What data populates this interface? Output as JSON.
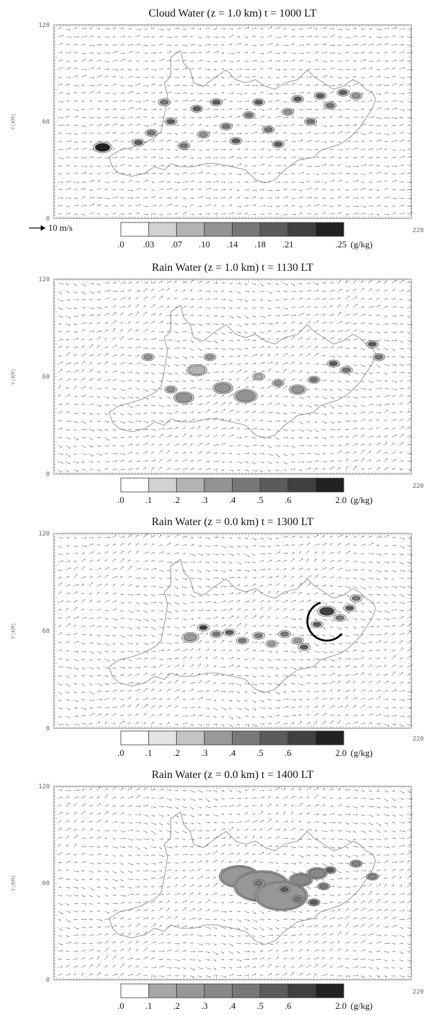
{
  "chart_data": [
    {
      "type": "heatmap",
      "title": "Cloud Water (z = 1.0 km)  t = 1000 LT",
      "ylabel": "Y(KM)",
      "x_max_label": "220",
      "yticks": [
        "0",
        "60",
        "120"
      ],
      "xlim": [
        0,
        220
      ],
      "ylim": [
        0,
        120
      ],
      "vector_reference": "10 m/s",
      "colorbar": {
        "labels": [
          ".0",
          ".03",
          ".07",
          ".10",
          ".14",
          ".18",
          ".21",
          ".25"
        ],
        "unit": "(g/kg)",
        "colors": [
          "#ffffff",
          "#d2d2d2",
          "#b3b3b3",
          "#949494",
          "#777777",
          "#5b5b5b",
          "#404040",
          "#222222"
        ]
      },
      "cells": [
        {
          "x": 30,
          "y": 44,
          "level": 7,
          "w": 9
        },
        {
          "x": 52,
          "y": 47,
          "level": 5
        },
        {
          "x": 60,
          "y": 53,
          "level": 4
        },
        {
          "x": 68,
          "y": 72,
          "level": 4
        },
        {
          "x": 72,
          "y": 60,
          "level": 5
        },
        {
          "x": 80,
          "y": 45,
          "level": 4
        },
        {
          "x": 88,
          "y": 68,
          "level": 5
        },
        {
          "x": 92,
          "y": 52,
          "level": 3
        },
        {
          "x": 100,
          "y": 72,
          "level": 5
        },
        {
          "x": 106,
          "y": 57,
          "level": 4
        },
        {
          "x": 112,
          "y": 48,
          "level": 5
        },
        {
          "x": 120,
          "y": 64,
          "level": 4
        },
        {
          "x": 126,
          "y": 72,
          "level": 5
        },
        {
          "x": 132,
          "y": 55,
          "level": 4
        },
        {
          "x": 138,
          "y": 46,
          "level": 5
        },
        {
          "x": 144,
          "y": 66,
          "level": 3
        },
        {
          "x": 150,
          "y": 74,
          "level": 5
        },
        {
          "x": 158,
          "y": 60,
          "level": 4
        },
        {
          "x": 164,
          "y": 76,
          "level": 5
        },
        {
          "x": 170,
          "y": 70,
          "level": 4
        },
        {
          "x": 178,
          "y": 78,
          "level": 5
        },
        {
          "x": 186,
          "y": 76,
          "level": 3
        }
      ]
    },
    {
      "type": "heatmap",
      "title": "Rain Water (z = 1.0 km)  t = 1130 LT",
      "ylabel": "Y(KM)",
      "x_max_label": "220",
      "yticks": [
        "0",
        "60",
        "120"
      ],
      "xlim": [
        0,
        220
      ],
      "ylim": [
        0,
        120
      ],
      "colorbar": {
        "labels": [
          ".0",
          ".1",
          ".2",
          ".3",
          ".4",
          ".5",
          ".6",
          "2.0"
        ],
        "unit": "(g/kg)",
        "colors": [
          "#ffffff",
          "#d2d2d2",
          "#b3b3b3",
          "#949494",
          "#777777",
          "#5b5b5b",
          "#404040",
          "#222222"
        ]
      },
      "cells": [
        {
          "x": 58,
          "y": 72,
          "level": 3
        },
        {
          "x": 72,
          "y": 52,
          "level": 3
        },
        {
          "x": 80,
          "y": 47,
          "level": 3,
          "w": 10
        },
        {
          "x": 88,
          "y": 64,
          "level": 2,
          "w": 10
        },
        {
          "x": 96,
          "y": 72,
          "level": 3
        },
        {
          "x": 104,
          "y": 53,
          "level": 3,
          "w": 10
        },
        {
          "x": 118,
          "y": 48,
          "level": 3,
          "w": 12
        },
        {
          "x": 126,
          "y": 60,
          "level": 2
        },
        {
          "x": 138,
          "y": 56,
          "level": 3
        },
        {
          "x": 150,
          "y": 52,
          "level": 3,
          "w": 8
        },
        {
          "x": 160,
          "y": 58,
          "level": 4
        },
        {
          "x": 172,
          "y": 68,
          "level": 5
        },
        {
          "x": 180,
          "y": 64,
          "level": 4
        },
        {
          "x": 196,
          "y": 80,
          "level": 5
        },
        {
          "x": 200,
          "y": 72,
          "level": 4
        }
      ]
    },
    {
      "type": "heatmap",
      "title": "Rain Water (z = 0.0 km)  t = 1300 LT",
      "ylabel": "Y(KM)",
      "x_max_label": "220",
      "yticks": [
        "0",
        "60",
        "120"
      ],
      "xlim": [
        0,
        220
      ],
      "ylim": [
        0,
        120
      ],
      "colorbar": {
        "labels": [
          ".0",
          ".1",
          ".2",
          ".3",
          ".4",
          ".5",
          ".6",
          "2.0"
        ],
        "unit": "(g/kg)",
        "colors": [
          "#ffffff",
          "#e4e4e4",
          "#c4c4c4",
          "#9a9a9a",
          "#7a7a7a",
          "#5b5b5b",
          "#404040",
          "#222222"
        ]
      },
      "cells": [
        {
          "x": 84,
          "y": 56,
          "level": 3,
          "w": 8
        },
        {
          "x": 92,
          "y": 62,
          "level": 6
        },
        {
          "x": 100,
          "y": 58,
          "level": 4
        },
        {
          "x": 108,
          "y": 59,
          "level": 5
        },
        {
          "x": 116,
          "y": 54,
          "level": 4
        },
        {
          "x": 126,
          "y": 57,
          "level": 4
        },
        {
          "x": 134,
          "y": 52,
          "level": 3
        },
        {
          "x": 142,
          "y": 58,
          "level": 4
        },
        {
          "x": 150,
          "y": 54,
          "level": 3
        },
        {
          "x": 154,
          "y": 50,
          "level": 5
        },
        {
          "x": 162,
          "y": 64,
          "level": 5
        },
        {
          "x": 168,
          "y": 72,
          "level": 6,
          "w": 9
        },
        {
          "x": 176,
          "y": 68,
          "level": 4
        },
        {
          "x": 182,
          "y": 74,
          "level": 5
        },
        {
          "x": 186,
          "y": 80,
          "level": 4
        }
      ],
      "annotation": {
        "shape": "arc",
        "cx": 168,
        "cy": 66,
        "r": 12
      }
    },
    {
      "type": "heatmap",
      "title": "Rain Water (z = 0.0 km)  t = 1400 LT",
      "ylabel": "Y(KM)",
      "x_max_label": "220",
      "yticks": [
        "0",
        "60",
        "120"
      ],
      "xlim": [
        0,
        220
      ],
      "ylim": [
        0,
        120
      ],
      "colorbar": {
        "labels": [
          ".0",
          ".1",
          ".2",
          ".3",
          ".4",
          ".5",
          ".6",
          "2.0"
        ],
        "unit": "(g/kg)",
        "colors": [
          "#ffffff",
          "#a6a6a6",
          "#979797",
          "#888888",
          "#777777",
          "#5b5b5b",
          "#404040",
          "#222222"
        ]
      },
      "cells": [
        {
          "x": 114,
          "y": 64,
          "level": 2,
          "w": 22
        },
        {
          "x": 128,
          "y": 58,
          "level": 2,
          "w": 32
        },
        {
          "x": 140,
          "y": 52,
          "level": 2,
          "w": 30
        },
        {
          "x": 152,
          "y": 62,
          "level": 3,
          "w": 12
        },
        {
          "x": 162,
          "y": 66,
          "level": 3,
          "w": 10
        },
        {
          "x": 126,
          "y": 60,
          "level": 4
        },
        {
          "x": 142,
          "y": 56,
          "level": 5
        },
        {
          "x": 150,
          "y": 50,
          "level": 4
        },
        {
          "x": 160,
          "y": 48,
          "level": 5
        },
        {
          "x": 166,
          "y": 58,
          "level": 4
        },
        {
          "x": 170,
          "y": 68,
          "level": 5
        },
        {
          "x": 186,
          "y": 72,
          "level": 3
        },
        {
          "x": 196,
          "y": 64,
          "level": 3
        }
      ]
    }
  ]
}
